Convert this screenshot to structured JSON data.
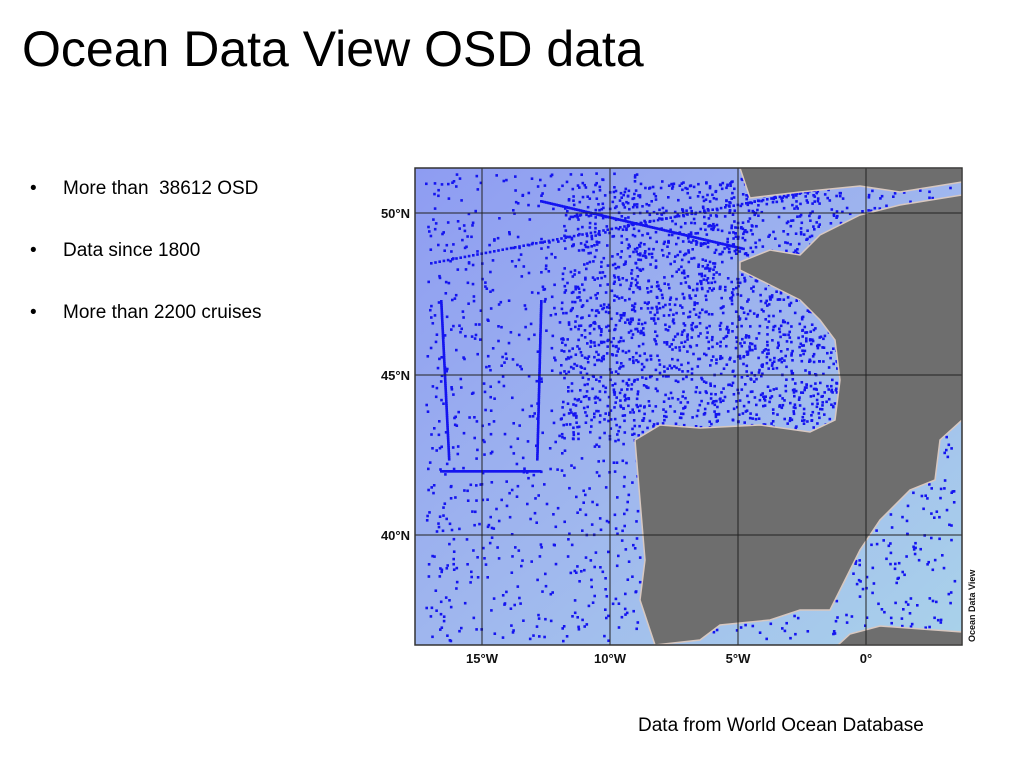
{
  "title": "Ocean Data View OSD data",
  "bullets": [
    "More than  38612 OSD",
    "Data since 1800",
    "More than 2200 cruises"
  ],
  "map": {
    "lat_labels": [
      "50°N",
      "45°N",
      "40°N"
    ],
    "lon_labels": [
      "15°W",
      "10°W",
      "5°W",
      "0°"
    ],
    "credit": "Ocean Data View"
  },
  "caption": "Data from World Ocean Database"
}
